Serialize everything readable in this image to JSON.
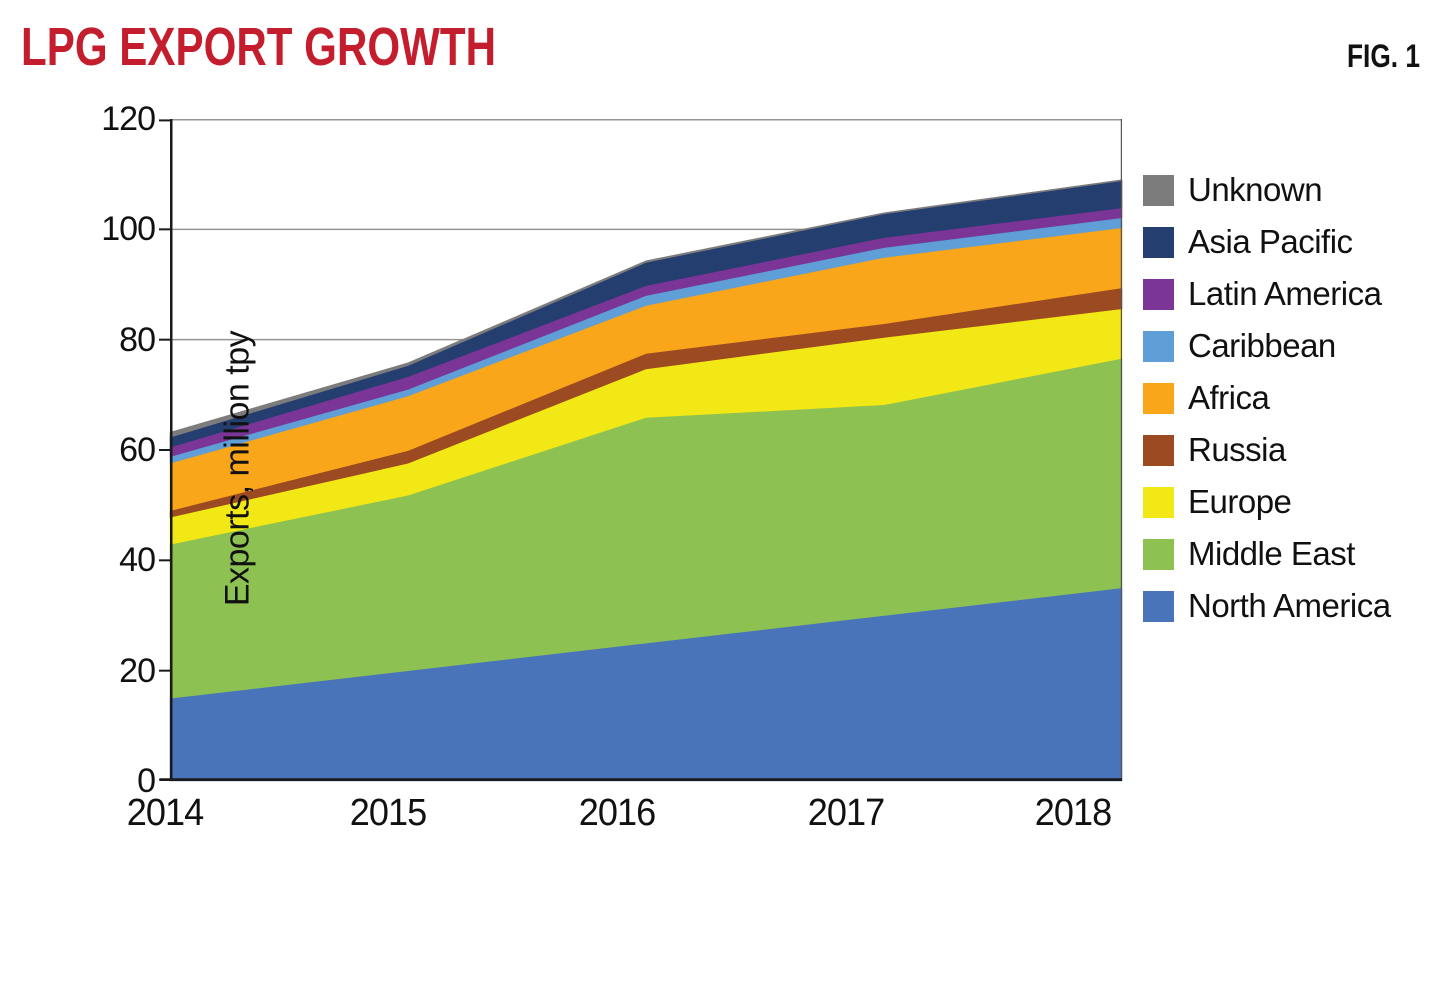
{
  "header": {
    "title": "LPG EXPORT GROWTH",
    "title_color": "#c41e2e",
    "fig_label": "FIG. 1"
  },
  "chart_data": {
    "type": "area",
    "stacked": true,
    "title": "LPG EXPORT GROWTH",
    "x": [
      2014,
      2015,
      2016,
      2017,
      2018
    ],
    "xlabel": "",
    "ylabel": "Exports, million tpy",
    "ylim": [
      0,
      120
    ],
    "yticks": [
      0,
      20,
      40,
      60,
      80,
      100,
      120
    ],
    "grid": "horizontal",
    "legend_position": "right",
    "legend_order": "top_to_bottom_reverse_of_stack",
    "series": [
      {
        "name": "North America",
        "color": "#4a74b9",
        "values": [
          15.0,
          20.0,
          25.0,
          30.0,
          35.0
        ]
      },
      {
        "name": "Middle East",
        "color": "#8dc152",
        "values": [
          27.9,
          31.8,
          40.9,
          38.2,
          41.6
        ]
      },
      {
        "name": "Europe",
        "color": "#f2e815",
        "values": [
          4.9,
          5.8,
          8.8,
          12.2,
          9.0
        ]
      },
      {
        "name": "Russia",
        "color": "#9c4a21",
        "values": [
          1.2,
          2.3,
          2.8,
          2.5,
          3.8
        ]
      },
      {
        "name": "Africa",
        "color": "#f9a61a",
        "values": [
          8.6,
          9.9,
          8.7,
          12.0,
          10.9
        ]
      },
      {
        "name": "Caribbean",
        "color": "#5f9ed7",
        "values": [
          1.2,
          1.2,
          1.8,
          1.8,
          1.8
        ]
      },
      {
        "name": "Latin America",
        "color": "#7a3596",
        "values": [
          1.7,
          2.3,
          1.8,
          1.8,
          1.8
        ]
      },
      {
        "name": "Asia Pacific",
        "color": "#243e70",
        "values": [
          1.8,
          2.0,
          4.2,
          4.3,
          4.9
        ]
      },
      {
        "name": "Unknown",
        "color": "#7c7c7c",
        "values": [
          0.9,
          0.5,
          0.3,
          0.2,
          0.2
        ]
      }
    ],
    "stack_totals": [
      63.2,
      75.8,
      94.3,
      103.0,
      109.0
    ]
  }
}
